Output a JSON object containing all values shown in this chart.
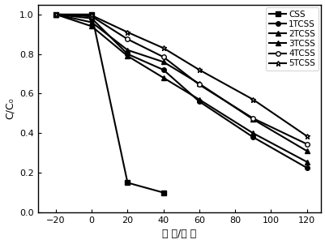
{
  "title": "",
  "xlabel": "时 间/分 钟",
  "ylabel": "C/C₀",
  "xlim": [
    -30,
    128
  ],
  "ylim": [
    0.0,
    1.05
  ],
  "xticks": [
    -20,
    0,
    20,
    40,
    60,
    80,
    100,
    120
  ],
  "yticks": [
    0.0,
    0.2,
    0.4,
    0.6,
    0.8,
    1.0
  ],
  "series": [
    {
      "label": "CSS",
      "x": [
        -20,
        0,
        20,
        40
      ],
      "y": [
        1.0,
        1.0,
        0.15,
        0.1
      ],
      "marker": "s",
      "linestyle": "-",
      "color": "black",
      "markersize": 4,
      "linewidth": 1.5,
      "markerfacecolor": "black"
    },
    {
      "label": "1TCSS",
      "x": [
        -20,
        0,
        20,
        40,
        60,
        90,
        120
      ],
      "y": [
        1.0,
        0.98,
        0.8,
        0.72,
        0.56,
        0.38,
        0.225
      ],
      "marker": "o",
      "linestyle": "-",
      "color": "black",
      "markersize": 4,
      "linewidth": 1.5,
      "markerfacecolor": "black"
    },
    {
      "label": "2TCSS",
      "x": [
        -20,
        0,
        20,
        40,
        60,
        90,
        120
      ],
      "y": [
        1.0,
        0.94,
        0.79,
        0.68,
        0.57,
        0.4,
        0.255
      ],
      "marker": "^",
      "linestyle": "-",
      "color": "black",
      "markersize": 4,
      "linewidth": 1.5,
      "markerfacecolor": "black"
    },
    {
      "label": "3TCSS",
      "x": [
        -20,
        0,
        20,
        40,
        60,
        90,
        120
      ],
      "y": [
        1.0,
        0.96,
        0.82,
        0.76,
        0.65,
        0.47,
        0.31
      ],
      "marker": "^",
      "linestyle": "-",
      "color": "black",
      "markersize": 4,
      "linewidth": 1.5,
      "markerfacecolor": "black"
    },
    {
      "label": "4TCSS",
      "x": [
        -20,
        0,
        20,
        40,
        60,
        90,
        120
      ],
      "y": [
        1.0,
        0.99,
        0.875,
        0.785,
        0.645,
        0.475,
        0.345
      ],
      "marker": "o",
      "linestyle": "-",
      "color": "black",
      "markersize": 4,
      "linewidth": 1.5,
      "markerfacecolor": "white"
    },
    {
      "label": "5TCSS",
      "x": [
        -20,
        0,
        20,
        40,
        60,
        90,
        120
      ],
      "y": [
        1.0,
        0.995,
        0.91,
        0.83,
        0.72,
        0.57,
        0.385
      ],
      "marker": "*",
      "linestyle": "-",
      "color": "black",
      "markersize": 5,
      "linewidth": 1.5,
      "markerfacecolor": "white"
    }
  ],
  "legend_loc": "upper right",
  "background_color": "white"
}
